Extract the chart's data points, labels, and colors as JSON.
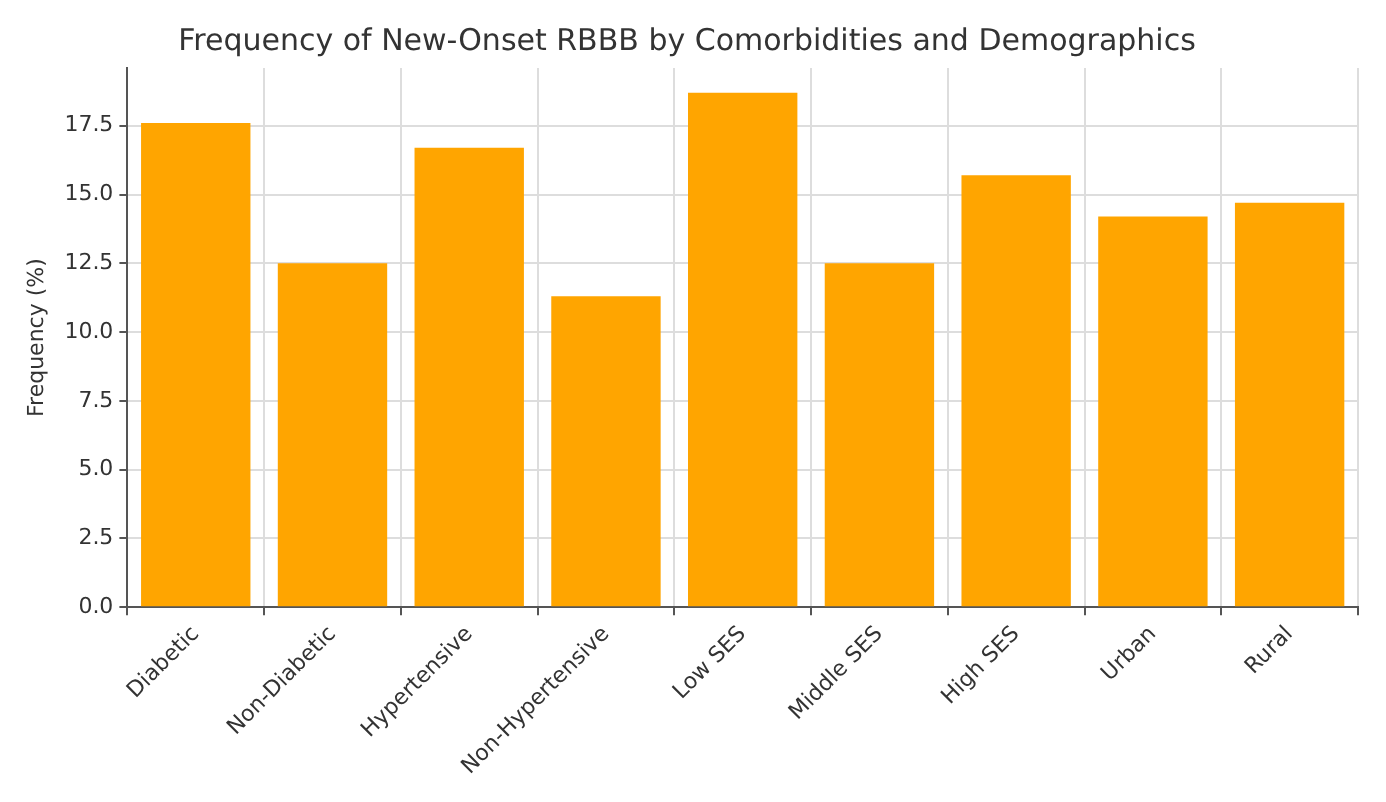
{
  "chart_data": {
    "type": "bar",
    "title": "Frequency of New-Onset RBBB by Comorbidities and Demographics",
    "ylabel": "Frequency (%)",
    "categories": [
      "Diabetic",
      "Non-Diabetic",
      "Hypertensive",
      "Non-Hypertensive",
      "Low SES",
      "Middle SES",
      "High SES",
      "Urban",
      "Rural"
    ],
    "values": [
      17.6,
      12.5,
      16.7,
      11.3,
      18.7,
      12.5,
      15.7,
      14.2,
      14.7
    ],
    "color": "#ffa500",
    "ylim": [
      0,
      19.6
    ],
    "yticks": [
      {
        "value": 0,
        "label": "0.0"
      },
      2.5,
      {
        "value": 5,
        "label": "5.0"
      },
      7.5,
      {
        "value": 10,
        "label": "10.0"
      },
      12.5,
      {
        "value": 15,
        "label": "15.0"
      },
      17.5
    ],
    "grid": true
  }
}
